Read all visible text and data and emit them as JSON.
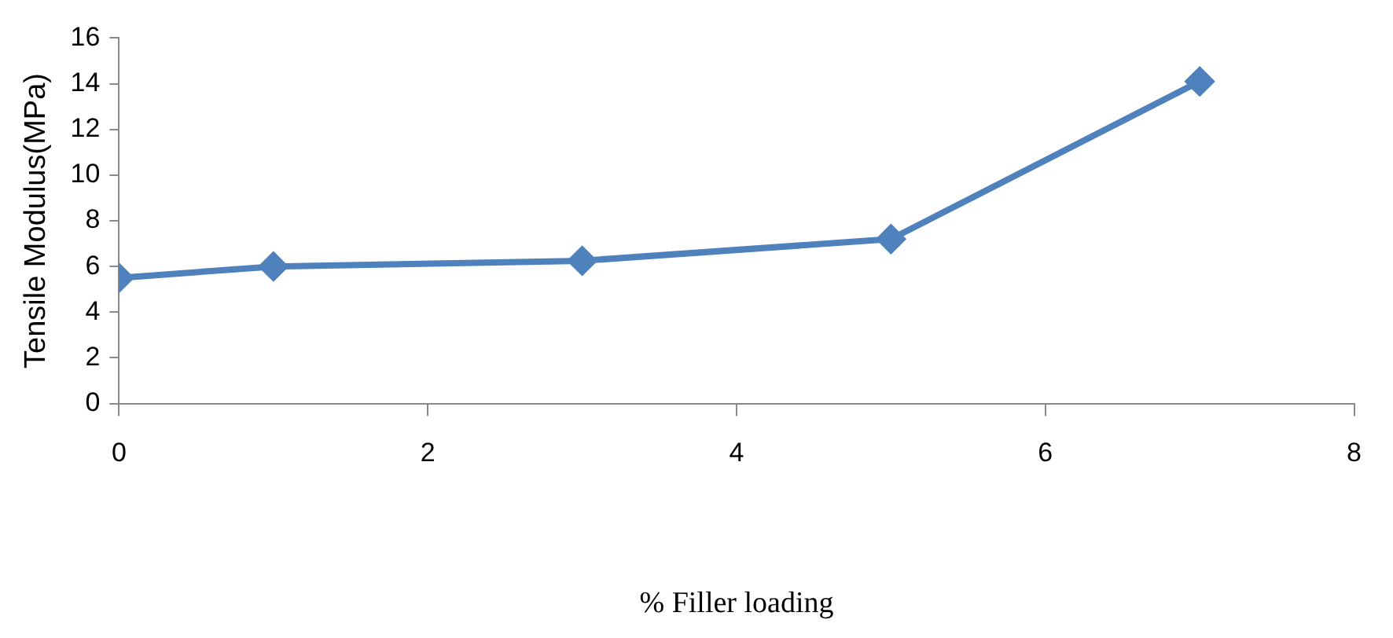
{
  "chart_data": {
    "type": "line",
    "xlabel": "% Filler loading",
    "ylabel": "Tensile Modulus(MPa)",
    "x": [
      0,
      1,
      3,
      5,
      7
    ],
    "series": [
      {
        "color": "#4f81bd",
        "values": [
          5.5,
          6.0,
          6.25,
          7.2,
          14.1
        ]
      }
    ],
    "xlim": [
      0,
      8
    ],
    "xticks": [
      0,
      2,
      4,
      6,
      8
    ],
    "ylim": [
      0,
      16
    ],
    "yticks": [
      0,
      2,
      4,
      6,
      8,
      10,
      12,
      14,
      16
    ],
    "grid": false,
    "legend": false,
    "marker": "diamond",
    "line_style": "solid"
  }
}
